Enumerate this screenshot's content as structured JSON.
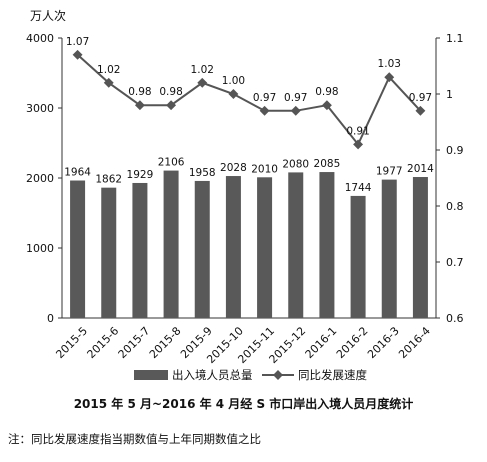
{
  "chart_data": {
    "type": "bar+line",
    "categories": [
      "2015-5",
      "2015-6",
      "2015-7",
      "2015-8",
      "2015-9",
      "2015-10",
      "2015-11",
      "2015-12",
      "2016-1",
      "2016-2",
      "2016-3",
      "2016-4"
    ],
    "series": [
      {
        "name": "出入境人员总量",
        "type": "bar",
        "axis": "left",
        "values": [
          1964,
          1862,
          1929,
          2106,
          1958,
          2028,
          2010,
          2080,
          2085,
          1744,
          1977,
          2014
        ]
      },
      {
        "name": "同比发展速度",
        "type": "line",
        "axis": "right",
        "values": [
          1.07,
          1.02,
          0.98,
          0.98,
          1.02,
          1.0,
          0.97,
          0.97,
          0.98,
          0.91,
          1.03,
          0.97
        ],
        "labels": [
          "1.07",
          "1.02",
          "0.98",
          "0.98",
          "1.02",
          "1.00",
          "0.97",
          "0.97",
          "0.98",
          "0.91",
          "1.03",
          "0.97"
        ]
      }
    ],
    "left_axis": {
      "unit": "万人次",
      "ylim": [
        0,
        4000
      ],
      "ticks": [
        0,
        1000,
        2000,
        3000,
        4000
      ]
    },
    "right_axis": {
      "ylim": [
        0.6,
        1.1
      ],
      "ticks": [
        "0.6",
        "0.7",
        "0.8",
        "0.9",
        "1",
        "1.1"
      ]
    },
    "grid": false,
    "legend_position": "bottom",
    "colors": {
      "bar": "#595959",
      "line": "#555555",
      "axis": "#333333"
    }
  },
  "caption": "2015 年 5 月~2016 年 4 月经 S 市口岸出入境人员月度统计",
  "note": "注：同比发展速度指当期数值与上年同期数值之比"
}
